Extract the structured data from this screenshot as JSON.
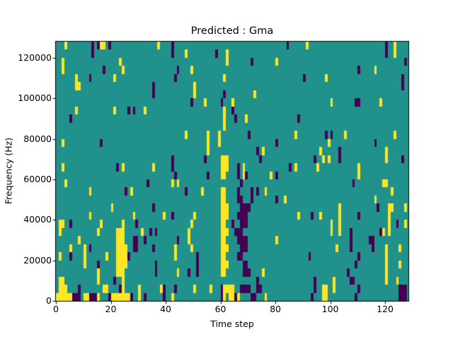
{
  "figure": {
    "background": "#ffffff",
    "frame_color": "#000000"
  },
  "chart_data": {
    "type": "heatmap",
    "title": "Predicted : Gma",
    "xlabel": "Time step",
    "ylabel": "Frequency (Hz)",
    "colormap": "viridis",
    "xlim": [
      0,
      128.5
    ],
    "ylim": [
      0,
      128000
    ],
    "x_ticks": [
      0,
      20,
      40,
      60,
      80,
      100,
      120
    ],
    "y_ticks": [
      0,
      20000,
      40000,
      60000,
      80000,
      100000,
      120000
    ],
    "n_cols": 129,
    "n_rows": 32,
    "row_height_hz": 4000,
    "legend": "none",
    "grid": false,
    "colors": {
      "mid": "#21918c",
      "high": "#fde725",
      "low": "#440154"
    },
    "rows": [
      {
        "row": 31,
        "yellow": [
          3,
          16,
          17,
          37,
          91,
          123
        ],
        "purple": [
          13,
          15,
          19,
          42,
          84,
          120
        ]
      },
      {
        "row": 30,
        "yellow": [
          47,
          62,
          123
        ],
        "purple": [
          13,
          42,
          58,
          120
        ]
      },
      {
        "row": 29,
        "yellow": [
          2,
          23,
          62,
          80
        ],
        "purple": [
          71,
          127
        ]
      },
      {
        "row": 28,
        "yellow": [
          2,
          24,
          49,
          116
        ],
        "purple": [
          17,
          44,
          110
        ]
      },
      {
        "row": 27,
        "yellow": [
          7,
          21,
          61,
          98
        ],
        "purple": [
          12,
          43,
          90,
          126
        ]
      },
      {
        "row": 26,
        "yellow": [
          7,
          8,
          50
        ],
        "purple": [
          35,
          126
        ]
      },
      {
        "row": 25,
        "yellow": [
          50,
          72
        ],
        "purple": [
          35,
          61
        ]
      },
      {
        "row": 24,
        "yellow": [
          54,
          64,
          100,
          118
        ],
        "purple": [
          49,
          60,
          109,
          110
        ]
      },
      {
        "row": 23,
        "yellow": [
          7,
          21,
          32,
          61
        ],
        "purple": [
          26,
          28,
          64
        ]
      },
      {
        "row": 22,
        "yellow": [
          61,
          69
        ],
        "purple": [
          5,
          65,
          88
        ]
      },
      {
        "row": 21,
        "yellow": [
          61
        ],
        "purple": []
      },
      {
        "row": 20,
        "yellow": [
          47,
          55,
          59,
          87,
          105,
          123
        ],
        "purple": [
          70,
          98,
          100
        ]
      },
      {
        "row": 19,
        "yellow": [
          2,
          55,
          59,
          99
        ],
        "purple": [
          16,
          80,
          116
        ]
      },
      {
        "row": 18,
        "yellow": [
          55,
          75,
          96,
          120
        ],
        "purple": [
          73,
          103
        ]
      },
      {
        "row": 17,
        "yellow": [
          60,
          61,
          62,
          97,
          99,
          120
        ],
        "purple": [
          42,
          54,
          74,
          94,
          103,
          126
        ]
      },
      {
        "row": 16,
        "yellow": [
          2,
          24,
          35,
          60,
          61,
          62,
          68,
          87,
          95,
          110
        ],
        "purple": [
          22,
          42,
          66,
          85
        ]
      },
      {
        "row": 15,
        "yellow": [
          60,
          61,
          68,
          78,
          110
        ],
        "purple": [
          43,
          55,
          66,
          69,
          80
        ]
      },
      {
        "row": 14,
        "yellow": [
          3,
          42,
          44,
          119,
          120
        ],
        "purple": [
          33,
          67,
          108
        ]
      },
      {
        "row": 13,
        "yellow": [
          12,
          27,
          53,
          60,
          61,
          76,
          122
        ],
        "purple": [
          25,
          47,
          66,
          71,
          73
        ]
      },
      {
        "row": 12,
        "yellow": [
          60,
          61,
          83,
          116
        ],
        "purple": [
          66,
          67,
          71,
          80
        ]
      },
      {
        "row": 11,
        "yellow": [
          20,
          60,
          61,
          62,
          103,
          121,
          122,
          127
        ],
        "purple": [
          35,
          67,
          68,
          69,
          70,
          117
        ]
      },
      {
        "row": 10,
        "yellow": [
          12,
          28,
          39,
          50,
          60,
          61,
          62,
          88,
          96,
          103,
          121
        ],
        "purple": [
          42,
          66,
          67,
          68,
          69,
          93,
          110
        ]
      },
      {
        "row": 9,
        "yellow": [
          1,
          2,
          16,
          24,
          49,
          60,
          61,
          100,
          103,
          121,
          127
        ],
        "purple": [
          5,
          29,
          64,
          67,
          68,
          69,
          124
        ]
      },
      {
        "row": 8,
        "yellow": [
          1,
          15,
          22,
          23,
          24,
          31,
          48,
          60,
          61,
          62,
          100,
          103,
          119,
          121
        ],
        "purple": [
          34,
          36,
          65,
          66,
          67,
          107,
          118
        ]
      },
      {
        "row": 7,
        "yellow": [
          8,
          22,
          23,
          24,
          48,
          60,
          61,
          80
        ],
        "purple": [
          28,
          29,
          32,
          44,
          66,
          67,
          68,
          69,
          107,
          114,
          115
        ]
      },
      {
        "row": 6,
        "yellow": [
          5,
          10,
          22,
          23,
          24,
          25,
          43,
          49,
          60,
          61,
          62,
          102,
          120,
          125
        ],
        "purple": [
          12,
          28,
          29,
          35,
          67,
          68,
          69,
          107,
          115
        ]
      },
      {
        "row": 5,
        "yellow": [
          1,
          10,
          18,
          22,
          23,
          24,
          25,
          43,
          60,
          61,
          120
        ],
        "purple": [
          5,
          26,
          51,
          66,
          67,
          92,
          110
        ]
      },
      {
        "row": 4,
        "yellow": [
          10,
          22,
          23,
          24,
          25,
          60,
          61,
          62,
          120,
          125
        ],
        "purple": [
          15,
          36,
          51,
          68,
          69,
          109
        ]
      },
      {
        "row": 3,
        "yellow": [
          15,
          22,
          23,
          24,
          44,
          60,
          61,
          75,
          120
        ],
        "purple": [
          36,
          48,
          51,
          68,
          69,
          70,
          106
        ]
      },
      {
        "row": 2,
        "yellow": [
          1,
          2,
          15,
          24,
          101,
          120,
          124
        ],
        "purple": [
          21,
          73,
          94,
          107,
          108
        ]
      },
      {
        "row": 1,
        "yellow": [
          1,
          2,
          3,
          17,
          18,
          24,
          30,
          38,
          50,
          56,
          61,
          62,
          63,
          64,
          97,
          98,
          101
        ],
        "purple": [
          8,
          23,
          39,
          43,
          60,
          67,
          68,
          69,
          70,
          73,
          74,
          94,
          110,
          125,
          126,
          127
        ]
      },
      {
        "row": 0,
        "yellow": [
          0,
          1,
          2,
          3,
          4,
          5,
          10,
          11,
          15,
          20,
          21,
          22,
          23,
          24,
          25,
          26,
          30,
          42,
          61,
          63,
          64,
          66,
          76,
          97,
          98
        ],
        "purple": [
          6,
          7,
          8,
          12,
          13,
          14,
          19,
          27,
          32,
          39,
          60,
          65,
          71,
          72,
          93,
          109,
          125,
          126,
          127
        ]
      }
    ]
  }
}
